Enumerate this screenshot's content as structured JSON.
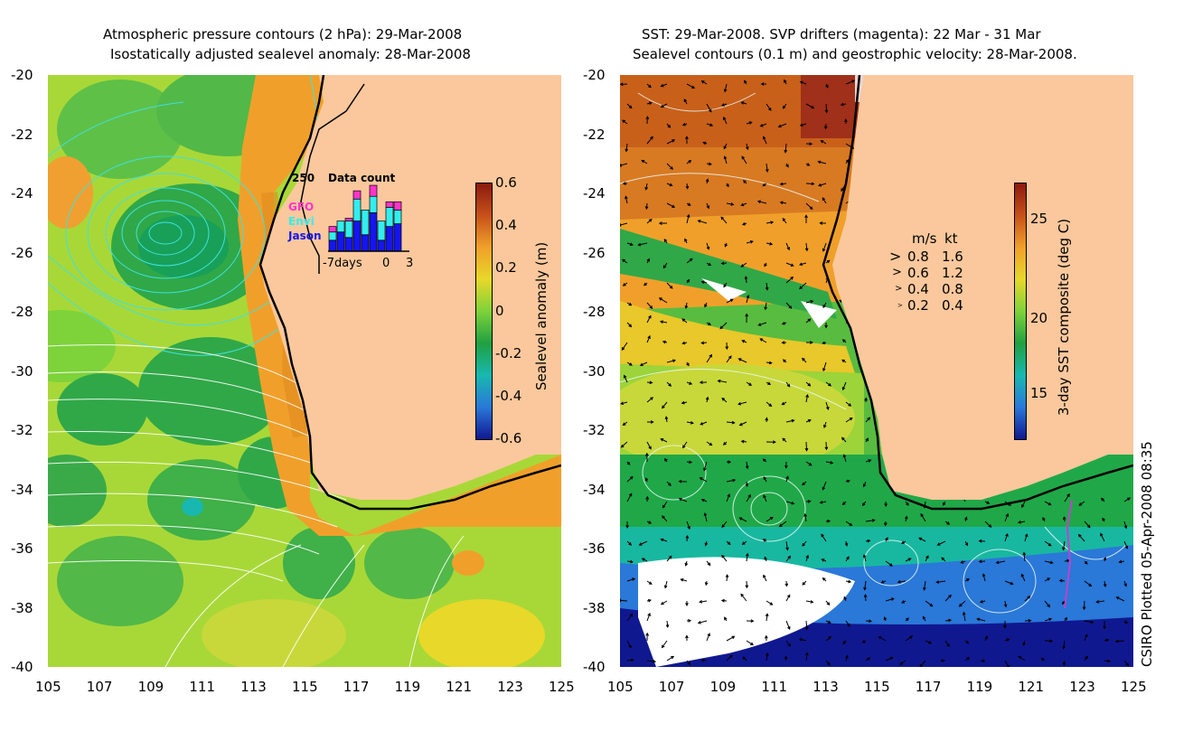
{
  "left_panel": {
    "title_line1": "Atmospheric pressure contours (2 hPa): 29-Mar-2008",
    "title_line2": "Isostatically adjusted sealevel anomaly: 28-Mar-2008",
    "colorbar": {
      "label": "Sealevel anomaly (m)",
      "ticks": [
        "0.6",
        "0.4",
        "0.2",
        "0",
        "-0.2",
        "-0.4",
        "-0.6"
      ],
      "colors": [
        "#8b1a0e",
        "#c8501a",
        "#f0a02a",
        "#e8d82a",
        "#7ed23a",
        "#20a040",
        "#18b8b0",
        "#2a78d8",
        "#101890"
      ]
    },
    "inset": {
      "max_label": "250",
      "title": "Data count",
      "legend": [
        {
          "label": "GFO",
          "color": "#ff33cc"
        },
        {
          "label": "Envi",
          "color": "#33eeee"
        },
        {
          "label": "Jason",
          "color": "#1515ee"
        }
      ],
      "x_labels": [
        "-7days",
        "0",
        "3"
      ],
      "bars": [
        {
          "jason": 40,
          "envi": 30,
          "gfo": 20
        },
        {
          "jason": 70,
          "envi": 40,
          "gfo": 0
        },
        {
          "jason": 50,
          "envi": 60,
          "gfo": 10
        },
        {
          "jason": 110,
          "envi": 80,
          "gfo": 30
        },
        {
          "jason": 60,
          "envi": 90,
          "gfo": 0
        },
        {
          "jason": 140,
          "envi": 60,
          "gfo": 40
        },
        {
          "jason": 40,
          "envi": 70,
          "gfo": 0
        },
        {
          "jason": 90,
          "envi": 70,
          "gfo": 20
        },
        {
          "jason": 100,
          "envi": 50,
          "gfo": 30
        }
      ]
    }
  },
  "right_panel": {
    "title_line1": "SST: 29-Mar-2008. SVP drifters (magenta): 22 Mar - 31 Mar",
    "title_line2": "Sealevel contours (0.1 m) and geostrophic velocity: 28-Mar-2008.",
    "colorbar": {
      "label": "3-day SST composite (deg C)",
      "ticks": [
        "25",
        "20",
        "15"
      ],
      "colors": [
        "#8b1a0e",
        "#c8501a",
        "#f0a02a",
        "#e8d82a",
        "#7ed23a",
        "#20a040",
        "#18b8b0",
        "#2a78d8",
        "#101890"
      ]
    },
    "velocity_legend": {
      "header_ms": "m/s",
      "header_kt": "kt",
      "rows": [
        {
          "ms": "0.8",
          "kt": "1.6"
        },
        {
          "ms": "0.6",
          "kt": "1.2"
        },
        {
          "ms": "0.4",
          "kt": "0.8"
        },
        {
          "ms": "0.2",
          "kt": "0.4"
        }
      ]
    }
  },
  "axes": {
    "y_labels": [
      "-20",
      "-22",
      "-24",
      "-26",
      "-28",
      "-30",
      "-32",
      "-34",
      "-36",
      "-38",
      "-40"
    ],
    "x_labels": [
      "105",
      "107",
      "109",
      "111",
      "113",
      "115",
      "117",
      "119",
      "121",
      "123",
      "125"
    ]
  },
  "credit": "CSIRO Plotted 05-Apr-2008 08:35",
  "land_color": "#fac89c"
}
